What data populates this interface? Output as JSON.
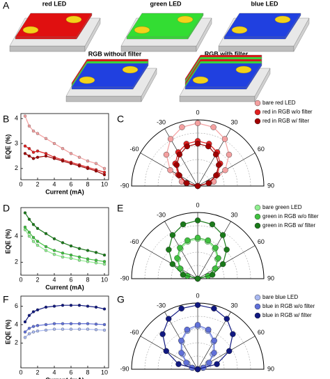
{
  "panel_labels": [
    "A",
    "B",
    "C",
    "D",
    "E",
    "F",
    "G"
  ],
  "panel_a": {
    "labels": [
      "red LED",
      "green LED",
      "blue LED",
      "RGB without filter",
      "RGB with filter"
    ]
  },
  "chart_data": [
    {
      "type": "line",
      "x_label": "Current (mA)",
      "y_label": "EQE (%)",
      "x": [
        0.5,
        1,
        1.5,
        2,
        3,
        4,
        5,
        6,
        7,
        8,
        9,
        10
      ],
      "xlim": [
        0,
        10.5
      ],
      "xticks": [
        0,
        2,
        4,
        6,
        8,
        10
      ],
      "ylim": [
        1.55,
        4.2
      ],
      "yticks": [
        2,
        3,
        4
      ],
      "series": [
        {
          "color": "#f4a0a0",
          "values": [
            4.1,
            3.7,
            3.5,
            3.4,
            3.2,
            3.0,
            2.8,
            2.6,
            2.45,
            2.3,
            2.2,
            2.0
          ]
        },
        {
          "color": "#e02020",
          "values": [
            2.9,
            2.8,
            2.65,
            2.7,
            2.6,
            2.45,
            2.35,
            2.25,
            2.15,
            2.05,
            1.95,
            1.85
          ]
        },
        {
          "color": "#a00000",
          "values": [
            2.6,
            2.5,
            2.4,
            2.45,
            2.5,
            2.4,
            2.3,
            2.2,
            2.1,
            2.0,
            1.9,
            1.75
          ]
        }
      ]
    },
    {
      "type": "polar",
      "theta": [
        -90,
        -75,
        -60,
        -45,
        -30,
        -15,
        0,
        15,
        30,
        45,
        60,
        75,
        90
      ],
      "thetaticks": [
        -90,
        -60,
        -30,
        0,
        30,
        60,
        90
      ],
      "rlim": [
        0,
        1
      ],
      "series": [
        {
          "name": "bare red LED",
          "color": "#f4a0a0",
          "values": [
            0,
            0.25,
            0.48,
            0.67,
            0.82,
            0.92,
            0.95,
            0.92,
            0.82,
            0.67,
            0.48,
            0.25,
            0
          ]
        },
        {
          "name": "red in RGB w/o filter",
          "color": "#e02020",
          "values": [
            0,
            0.18,
            0.34,
            0.48,
            0.59,
            0.66,
            0.68,
            0.66,
            0.59,
            0.48,
            0.34,
            0.18,
            0
          ]
        },
        {
          "name": "red in RGB w/ filter",
          "color": "#a00000",
          "values": [
            0,
            0.17,
            0.32,
            0.45,
            0.55,
            0.62,
            0.64,
            0.62,
            0.55,
            0.45,
            0.32,
            0.17,
            0
          ]
        }
      ]
    },
    {
      "type": "line",
      "x_label": "Current (mA)",
      "y_label": "EQE (%)",
      "x": [
        0.5,
        1,
        1.5,
        2,
        3,
        4,
        5,
        6,
        7,
        8,
        9,
        10
      ],
      "xlim": [
        0,
        10.5
      ],
      "xticks": [
        0,
        2,
        4,
        6,
        8,
        10
      ],
      "ylim": [
        1,
        6.2
      ],
      "yticks": [
        2,
        4
      ],
      "series": [
        {
          "color": "#90ee90",
          "values": [
            4.5,
            4.0,
            3.6,
            3.3,
            2.9,
            2.6,
            2.4,
            2.3,
            2.15,
            2.05,
            1.95,
            1.85
          ]
        },
        {
          "color": "#40c040",
          "values": [
            4.7,
            4.3,
            3.9,
            3.6,
            3.2,
            2.9,
            2.7,
            2.55,
            2.4,
            2.25,
            2.15,
            2.05
          ]
        },
        {
          "color": "#1a7a1a",
          "values": [
            5.8,
            5.3,
            4.9,
            4.6,
            4.2,
            3.8,
            3.5,
            3.25,
            3.05,
            2.9,
            2.75,
            2.55
          ]
        }
      ]
    },
    {
      "type": "polar",
      "theta": [
        -90,
        -75,
        -60,
        -45,
        -30,
        -15,
        0,
        15,
        30,
        45,
        60,
        75,
        90
      ],
      "thetaticks": [
        -90,
        -60,
        -30,
        0,
        30,
        60,
        90
      ],
      "rlim": [
        0,
        1
      ],
      "series": [
        {
          "name": "bare green LED",
          "color": "#90ee90",
          "values": [
            0,
            0.16,
            0.3,
            0.42,
            0.52,
            0.58,
            0.6,
            0.58,
            0.52,
            0.42,
            0.3,
            0.16,
            0
          ]
        },
        {
          "name": "green in RGB w/o filter",
          "color": "#40c040",
          "values": [
            0,
            0.16,
            0.31,
            0.44,
            0.54,
            0.6,
            0.62,
            0.6,
            0.54,
            0.44,
            0.31,
            0.16,
            0
          ]
        },
        {
          "name": "green in RGB w/ filter",
          "color": "#1a7a1a",
          "values": [
            0,
            0.23,
            0.44,
            0.62,
            0.76,
            0.85,
            0.88,
            0.85,
            0.76,
            0.62,
            0.44,
            0.23,
            0
          ]
        }
      ]
    },
    {
      "type": "line",
      "x_label": "Current (mA)",
      "y_label": "EQE (%)",
      "x": [
        0.5,
        1,
        1.5,
        2,
        3,
        4,
        5,
        6,
        7,
        8,
        9,
        10
      ],
      "xlim": [
        0,
        10.5
      ],
      "xticks": [
        0,
        2,
        4,
        6,
        8,
        10
      ],
      "ylim": [
        -0.7,
        7.1
      ],
      "yticks": [
        2,
        4,
        6
      ],
      "series": [
        {
          "color": "#a8b8f0",
          "values": [
            2.6,
            3.0,
            3.2,
            3.3,
            3.4,
            3.5,
            3.5,
            3.5,
            3.5,
            3.5,
            3.45,
            3.4
          ]
        },
        {
          "color": "#6070d8",
          "values": [
            3.2,
            3.6,
            3.8,
            3.9,
            4.0,
            4.1,
            4.1,
            4.1,
            4.1,
            4.1,
            4.05,
            4.0
          ]
        },
        {
          "color": "#101880",
          "values": [
            4.3,
            5.0,
            5.4,
            5.6,
            5.9,
            6.0,
            6.1,
            6.1,
            6.1,
            6.0,
            5.9,
            5.7
          ]
        }
      ]
    },
    {
      "type": "polar",
      "theta": [
        -90,
        -75,
        -60,
        -45,
        -30,
        -15,
        0,
        15,
        30,
        45,
        60,
        75,
        90
      ],
      "thetaticks": [
        -90,
        -60,
        -30,
        0,
        30,
        60,
        90
      ],
      "rlim": [
        0,
        1
      ],
      "series": [
        {
          "name": "bare blue LED",
          "color": "#a8b8f0",
          "values": [
            0,
            0.08,
            0.18,
            0.32,
            0.48,
            0.6,
            0.65,
            0.6,
            0.48,
            0.32,
            0.18,
            0.08,
            0
          ]
        },
        {
          "name": "blue in RGB w/o filter",
          "color": "#6070d8",
          "values": [
            0,
            0.09,
            0.2,
            0.35,
            0.5,
            0.62,
            0.67,
            0.62,
            0.5,
            0.35,
            0.2,
            0.09,
            0
          ]
        },
        {
          "name": "blue in RGB w/ filter",
          "color": "#101880",
          "values": [
            0,
            0.3,
            0.55,
            0.75,
            0.88,
            0.95,
            0.97,
            0.95,
            0.88,
            0.75,
            0.55,
            0.3,
            0
          ]
        }
      ]
    }
  ]
}
